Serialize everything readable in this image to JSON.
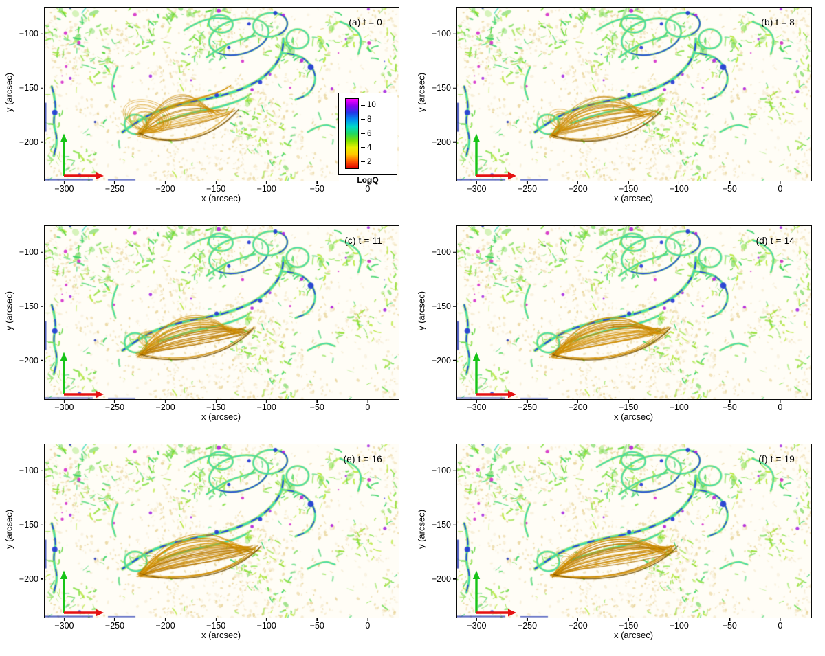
{
  "chart_data": {
    "type": "heatmap",
    "xlabel": "x (arcsec)",
    "ylabel": "y (arcsec)",
    "x_range": [
      -320,
      30
    ],
    "y_range": [
      -235,
      -75
    ],
    "x_ticks": [
      -300,
      -250,
      -200,
      -150,
      -100,
      -50,
      0
    ],
    "y_ticks": [
      -100,
      -150,
      -200
    ],
    "grid": false,
    "panels": [
      {
        "id": "a",
        "label": "(a) t = 0",
        "t": 0
      },
      {
        "id": "b",
        "label": "(b) t = 8",
        "t": 8
      },
      {
        "id": "c",
        "label": "(c) t = 11",
        "t": 11
      },
      {
        "id": "d",
        "label": "(d) t = 14",
        "t": 14
      },
      {
        "id": "e",
        "label": "(e) t = 16",
        "t": 16
      },
      {
        "id": "f",
        "label": "(f) t = 19",
        "t": 19
      }
    ],
    "colorbar": {
      "label": "LogQ",
      "ticks": [
        2,
        4,
        6,
        8,
        10
      ],
      "range": [
        1,
        11
      ],
      "colors_bottom_to_top": [
        "#dd0000",
        "#ff5a00",
        "#ffc800",
        "#e8f000",
        "#7ce000",
        "#22d860",
        "#00d8c8",
        "#0090f0",
        "#2238e8",
        "#8a00f0",
        "#ff00ff"
      ]
    },
    "axis_arrows": {
      "x_color": "#e51212",
      "y_color": "#17c417"
    },
    "fieldline_colors": [
      "#d28f00",
      "#b07200"
    ],
    "map_palette": {
      "background": "#fffdf6",
      "creams": [
        "#f6ebcf",
        "#f1e2b9",
        "#ead7a0",
        "#f9f1de"
      ],
      "greens": [
        "#8ce24e",
        "#62d63e",
        "#b9e83e",
        "#3fd46a",
        "#9adf3f"
      ],
      "teal": "#2fd8b8",
      "blues": [
        "#2136d6",
        "#1b2fb0",
        "#3a3ae0"
      ],
      "purples": [
        "#a21fe0",
        "#d422c8"
      ]
    }
  }
}
